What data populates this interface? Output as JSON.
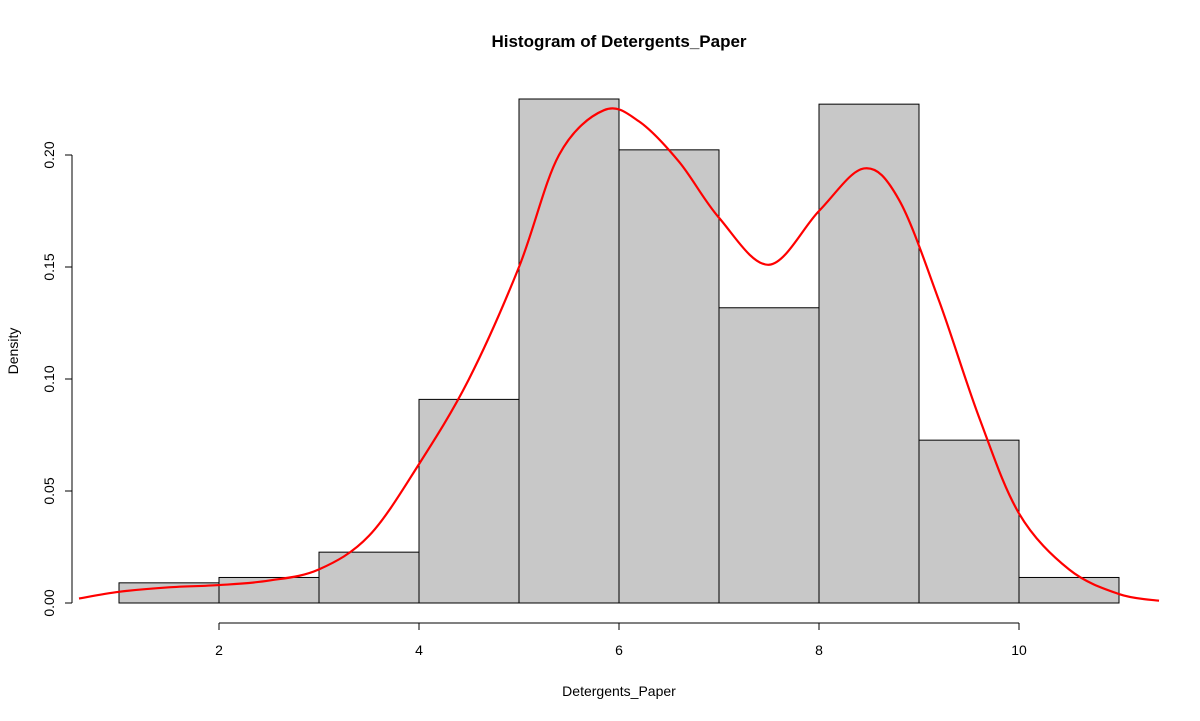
{
  "chart_data": {
    "type": "histogram",
    "title": "Histogram of Detergents_Paper",
    "xlabel": "Detergents_Paper",
    "ylabel": "Density",
    "bins": [
      {
        "x0": 1,
        "x1": 2,
        "density": 0.009
      },
      {
        "x0": 2,
        "x1": 3,
        "density": 0.0114
      },
      {
        "x0": 3,
        "x1": 4,
        "density": 0.0227
      },
      {
        "x0": 4,
        "x1": 5,
        "density": 0.0909
      },
      {
        "x0": 5,
        "x1": 6,
        "density": 0.225
      },
      {
        "x0": 6,
        "x1": 7,
        "density": 0.2023
      },
      {
        "x0": 7,
        "x1": 8,
        "density": 0.1318
      },
      {
        "x0": 8,
        "x1": 9,
        "density": 0.2227
      },
      {
        "x0": 9,
        "x1": 10,
        "density": 0.0727
      },
      {
        "x0": 10,
        "x1": 11,
        "density": 0.0114
      }
    ],
    "density_curve": {
      "color": "#ff0000",
      "x": [
        0.6,
        1.0,
        1.5,
        2.0,
        2.5,
        3.0,
        3.5,
        4.0,
        4.5,
        5.0,
        5.4,
        5.85,
        6.2,
        6.6,
        7.0,
        7.5,
        8.0,
        8.45,
        8.8,
        9.2,
        9.6,
        10.0,
        10.5,
        11.0,
        11.4
      ],
      "y": [
        0.002,
        0.005,
        0.007,
        0.008,
        0.01,
        0.015,
        0.03,
        0.062,
        0.1,
        0.15,
        0.2,
        0.22,
        0.215,
        0.197,
        0.172,
        0.151,
        0.175,
        0.194,
        0.18,
        0.135,
        0.083,
        0.04,
        0.015,
        0.004,
        0.001
      ]
    },
    "xticks": [
      2,
      4,
      6,
      8,
      10
    ],
    "yticks": [
      0.0,
      0.05,
      0.1,
      0.15,
      0.2
    ],
    "xtick_labels": [
      "2",
      "4",
      "6",
      "8",
      "10"
    ],
    "ytick_labels": [
      "0.00",
      "0.05",
      "0.10",
      "0.15",
      "0.20"
    ],
    "xlim": [
      0.6,
      11.4
    ],
    "ylim": [
      0,
      0.225
    ],
    "bar_color": "#c8c8c8",
    "grid": false
  }
}
